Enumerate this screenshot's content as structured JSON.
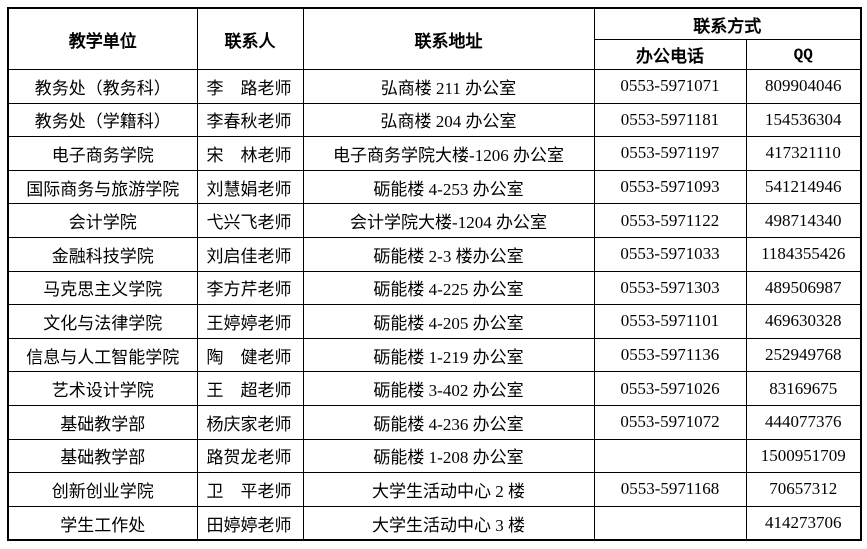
{
  "table": {
    "headers": {
      "unit": "教学单位",
      "contact": "联系人",
      "address": "联系地址",
      "contact_method": "联系方式",
      "phone": "办公电话",
      "qq": "QQ"
    },
    "rows": [
      {
        "unit": "教务处（教务科）",
        "contact": "李　路老师",
        "address": "弘商楼 211 办公室",
        "phone": "0553-5971071",
        "qq": "809904046"
      },
      {
        "unit": "教务处（学籍科）",
        "contact": "李春秋老师",
        "address": "弘商楼 204 办公室",
        "phone": "0553-5971181",
        "qq": "154536304"
      },
      {
        "unit": "电子商务学院",
        "contact": "宋　林老师",
        "address": "电子商务学院大楼-1206 办公室",
        "phone": "0553-5971197",
        "qq": "417321110"
      },
      {
        "unit": "国际商务与旅游学院",
        "contact": "刘慧娟老师",
        "address": "砺能楼 4-253 办公室",
        "phone": "0553-5971093",
        "qq": "541214946"
      },
      {
        "unit": "会计学院",
        "contact": "弋兴飞老师",
        "address": "会计学院大楼-1204 办公室",
        "phone": "0553-5971122",
        "qq": "498714340"
      },
      {
        "unit": "金融科技学院",
        "contact": "刘启佳老师",
        "address": "砺能楼 2-3 楼办公室",
        "phone": "0553-5971033",
        "qq": "1184355426"
      },
      {
        "unit": "马克思主义学院",
        "contact": "李方芹老师",
        "address": "砺能楼 4-225 办公室",
        "phone": "0553-5971303",
        "qq": "489506987"
      },
      {
        "unit": "文化与法律学院",
        "contact": "王婷婷老师",
        "address": "砺能楼 4-205 办公室",
        "phone": "0553-5971101",
        "qq": "469630328"
      },
      {
        "unit": "信息与人工智能学院",
        "contact": "陶　健老师",
        "address": "砺能楼 1-219 办公室",
        "phone": "0553-5971136",
        "qq": "252949768"
      },
      {
        "unit": "艺术设计学院",
        "contact": "王　超老师",
        "address": "砺能楼 3-402 办公室",
        "phone": "0553-5971026",
        "qq": "83169675"
      },
      {
        "unit": "基础教学部",
        "contact": "杨庆家老师",
        "address": "砺能楼 4-236 办公室",
        "phone": "0553-5971072",
        "qq": "444077376"
      },
      {
        "unit": "基础教学部",
        "contact": "路贺龙老师",
        "address": "砺能楼 1-208 办公室",
        "phone": "",
        "qq": "1500951709"
      },
      {
        "unit": "创新创业学院",
        "contact": "卫　平老师",
        "address": "大学生活动中心 2 楼",
        "phone": "0553-5971168",
        "qq": "70657312"
      },
      {
        "unit": "学生工作处",
        "contact": "田婷婷老师",
        "address": "大学生活动中心 3 楼",
        "phone": "",
        "qq": "414273706"
      }
    ]
  }
}
